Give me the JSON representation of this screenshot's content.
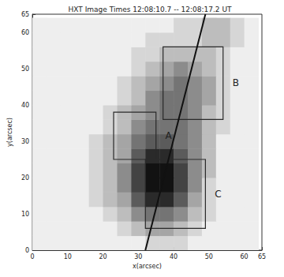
{
  "chart_data": {
    "type": "image",
    "title": "HXT Image Times 12:08:10.7 -- 12:08:17.2 UT",
    "x_label": "x(arcsec)",
    "y_label": "y(arcsec)",
    "xlim": [
      0,
      65
    ],
    "ylim": [
      0,
      65
    ],
    "xticks": [
      0,
      10,
      20,
      30,
      40,
      50,
      60
    ],
    "yticks": [
      0,
      10,
      20,
      30,
      40,
      50,
      60
    ],
    "cell_size": 4,
    "color_range": [
      0,
      9
    ],
    "cells": {
      "x": [
        2,
        6,
        10,
        14,
        18,
        22,
        26,
        30,
        34,
        38,
        42,
        46,
        50,
        54,
        58,
        62
      ],
      "y": [
        2,
        6,
        10,
        14,
        18,
        22,
        26,
        30,
        34,
        38,
        42,
        46,
        50,
        54,
        58,
        62
      ],
      "z": [
        [
          0,
          0,
          0,
          0,
          0,
          0,
          0,
          0,
          1,
          1,
          1,
          0,
          0,
          0,
          0,
          0
        ],
        [
          0,
          0,
          0,
          0,
          0,
          0,
          1,
          2,
          3,
          3,
          2,
          1,
          0,
          0,
          0,
          0
        ],
        [
          0,
          0,
          0,
          0,
          0,
          1,
          2,
          4,
          5,
          5,
          4,
          2,
          1,
          0,
          0,
          0
        ],
        [
          0,
          0,
          0,
          0,
          1,
          2,
          3,
          6,
          8,
          8,
          6,
          3,
          1,
          0,
          0,
          0
        ],
        [
          0,
          0,
          0,
          0,
          1,
          2,
          4,
          7,
          9,
          9,
          7,
          4,
          1,
          0,
          0,
          0
        ],
        [
          0,
          0,
          0,
          0,
          1,
          2,
          4,
          7,
          9,
          9,
          7,
          4,
          2,
          0,
          0,
          0
        ],
        [
          0,
          0,
          0,
          0,
          1,
          2,
          3,
          6,
          8,
          8,
          6,
          4,
          2,
          0,
          0,
          0
        ],
        [
          0,
          0,
          0,
          0,
          1,
          2,
          3,
          5,
          6,
          6,
          5,
          4,
          2,
          0,
          0,
          0
        ],
        [
          0,
          0,
          0,
          0,
          0,
          1,
          2,
          4,
          5,
          5,
          5,
          4,
          2,
          1,
          0,
          0
        ],
        [
          0,
          0,
          0,
          0,
          0,
          1,
          2,
          3,
          4,
          5,
          5,
          4,
          2,
          1,
          0,
          0
        ],
        [
          0,
          0,
          0,
          0,
          0,
          0,
          1,
          2,
          4,
          5,
          5,
          4,
          3,
          1,
          0,
          0
        ],
        [
          0,
          0,
          0,
          0,
          0,
          0,
          1,
          2,
          3,
          4,
          5,
          4,
          3,
          1,
          0,
          0
        ],
        [
          0,
          0,
          0,
          0,
          0,
          0,
          0,
          1,
          2,
          3,
          4,
          3,
          2,
          1,
          0,
          0
        ],
        [
          0,
          0,
          0,
          0,
          0,
          0,
          0,
          1,
          1,
          2,
          2,
          2,
          2,
          1,
          0,
          0
        ],
        [
          0,
          0,
          0,
          0,
          0,
          0,
          0,
          0,
          1,
          1,
          1,
          1,
          2,
          2,
          1,
          0
        ],
        [
          0,
          0,
          0,
          0,
          0,
          0,
          0,
          0,
          0,
          0,
          1,
          1,
          2,
          2,
          1,
          0
        ]
      ]
    },
    "boxes": [
      {
        "label": "A",
        "x": [
          23,
          35
        ],
        "y": [
          25,
          38
        ]
      },
      {
        "label": "B",
        "x": [
          37,
          54
        ],
        "y": [
          36,
          56
        ]
      },
      {
        "label": "C",
        "x": [
          32,
          49
        ],
        "y": [
          6,
          25
        ]
      }
    ],
    "line": {
      "x": [
        32,
        49
      ],
      "y": [
        0,
        65
      ]
    }
  }
}
